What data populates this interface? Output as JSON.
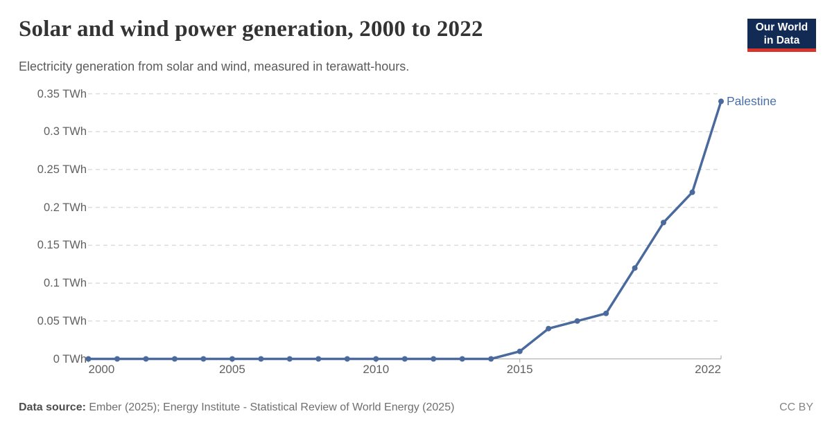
{
  "header": {
    "title": "Solar and wind power generation, 2000 to 2022",
    "subtitle": "Electricity generation from solar and wind, measured in terawatt-hours.",
    "logo": {
      "line1": "Our World",
      "line2": "in Data"
    }
  },
  "chart_data": {
    "type": "line",
    "title": "Solar and wind power generation, 2000 to 2022",
    "subtitle": "Electricity generation from solar and wind, measured in terawatt-hours.",
    "x": [
      2000,
      2001,
      2002,
      2003,
      2004,
      2005,
      2006,
      2007,
      2008,
      2009,
      2010,
      2011,
      2012,
      2013,
      2014,
      2015,
      2016,
      2017,
      2018,
      2019,
      2020,
      2021,
      2022
    ],
    "series": [
      {
        "name": "Palestine",
        "values": [
          0,
          0,
          0,
          0,
          0,
          0,
          0,
          0,
          0,
          0,
          0,
          0,
          0,
          0,
          0,
          0.01,
          0.04,
          0.05,
          0.06,
          0.12,
          0.18,
          0.22,
          0.34
        ]
      }
    ],
    "xlabel": "",
    "ylabel": "TWh",
    "xlim": [
      2000,
      2022
    ],
    "ylim": [
      0,
      0.35
    ],
    "grid": "horizontal-dashed",
    "legend_position": "line-end-label",
    "yticks": [
      {
        "value": 0,
        "label": "0 TWh"
      },
      {
        "value": 0.05,
        "label": "0.05 TWh"
      },
      {
        "value": 0.1,
        "label": "0.1 TWh"
      },
      {
        "value": 0.15,
        "label": "0.15 TWh"
      },
      {
        "value": 0.2,
        "label": "0.2 TWh"
      },
      {
        "value": 0.25,
        "label": "0.25 TWh"
      },
      {
        "value": 0.3,
        "label": "0.3 TWh"
      },
      {
        "value": 0.35,
        "label": "0.35 TWh"
      }
    ],
    "xticks": [
      {
        "value": 2000,
        "label": "2000"
      },
      {
        "value": 2005,
        "label": "2005"
      },
      {
        "value": 2010,
        "label": "2010"
      },
      {
        "value": 2015,
        "label": "2015"
      },
      {
        "value": 2022,
        "label": "2022"
      }
    ]
  },
  "footer": {
    "source_label": "Data source:",
    "source_text": "Ember (2025); Energy Institute - Statistical Review of World Energy (2025)",
    "license": "CC BY"
  },
  "colors": {
    "series": "#4a699c",
    "series_label": "#4a6fa8",
    "grid": "#dcdcdc",
    "axis": "#a3a3a3",
    "tick_label": "#606060",
    "title": "#333333",
    "subtitle": "#5b5b5b",
    "logo_bg": "#112b55",
    "logo_red": "#d7342b"
  }
}
